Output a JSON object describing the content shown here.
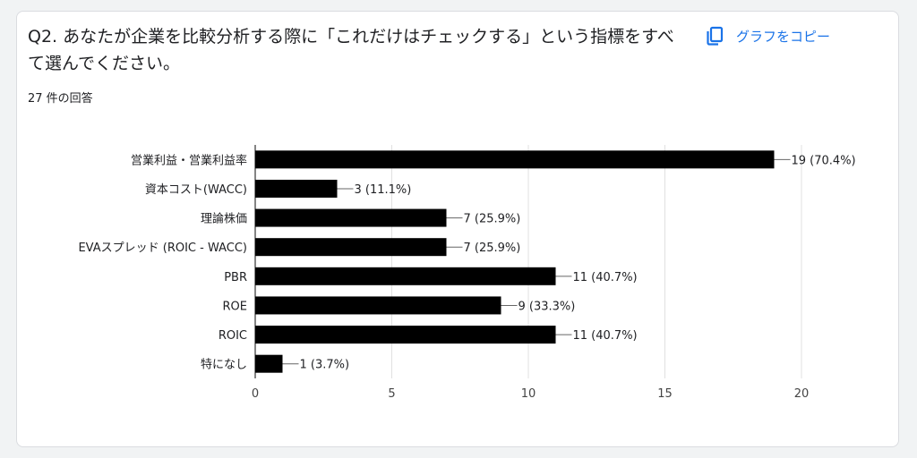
{
  "question": {
    "title": "Q2. あなたが企業を比較分析する際に「これだけはチェックする」という指標をすべて選んでください。",
    "response_count": "27 件の回答"
  },
  "toolbar": {
    "copy_label": "グラフをコピー",
    "copy_icon": "copy-icon"
  },
  "colors": {
    "bar": "#000000",
    "accent": "#1a73e8",
    "grid": "#e0e0e0"
  },
  "chart_data": {
    "type": "bar",
    "orientation": "horizontal",
    "categories": [
      "営業利益・営業利益率",
      "資本コスト(WACC)",
      "理論株価",
      "EVAスプレッド (ROIC - WACC)",
      "PBR",
      "ROE",
      "ROIC",
      "特になし"
    ],
    "values": [
      19,
      3,
      7,
      7,
      11,
      9,
      11,
      1
    ],
    "data_labels": [
      "19 (70.4%)",
      "3 (11.1%)",
      "7 (25.9%)",
      "7 (25.9%)",
      "11 (40.7%)",
      "9 (33.3%)",
      "11 (40.7%)",
      "1 (3.7%)"
    ],
    "xlim": [
      0,
      20
    ],
    "xticks": [
      0,
      5,
      10,
      15,
      20
    ],
    "xtick_labels": [
      "0",
      "5",
      "10",
      "15",
      "20"
    ],
    "grid": true,
    "legend": "none"
  }
}
